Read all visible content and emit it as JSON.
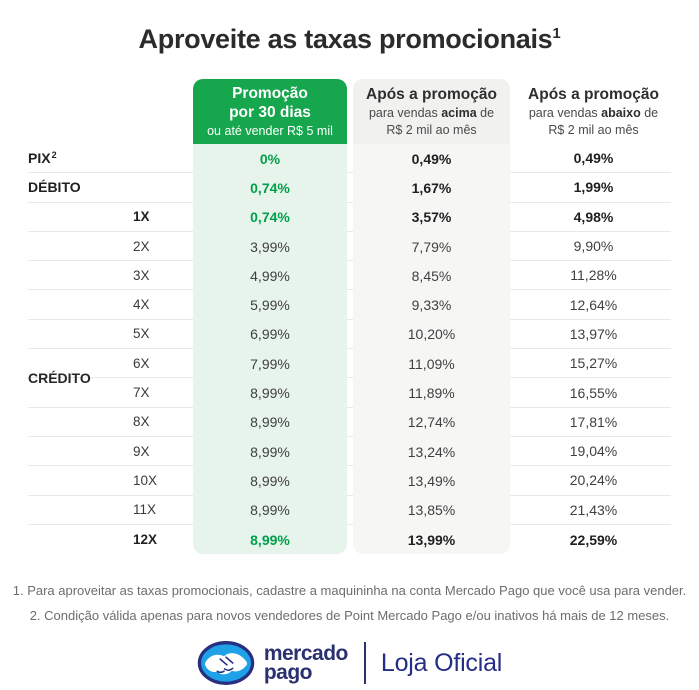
{
  "title": {
    "text": "Aproveite as taxas promocionais",
    "superscript": "1"
  },
  "columns": {
    "promo": {
      "line1": "Promoção",
      "line2": "por 30 dias",
      "line3": "ou até vender R$ 5 mil"
    },
    "above": {
      "line1": "Após a promoção",
      "line2_pre": "para vendas ",
      "line2_emph": "acima",
      "line2_post": " de",
      "line3": "R$ 2 mil ao mês"
    },
    "below": {
      "line1": "Após a promoção",
      "line2_pre": "para vendas ",
      "line2_emph": "abaixo",
      "line2_post": " de",
      "line3": "R$ 2 mil ao mês"
    }
  },
  "groups": {
    "credito": "CRÉDITO"
  },
  "rows": [
    {
      "key": "pix",
      "group": "PIX",
      "group_sup": "2",
      "installment": "",
      "promo": "0%",
      "above": "0,49%",
      "below": "0,49%",
      "bold": true,
      "promo_green": true
    },
    {
      "key": "debito",
      "group": "DÉBITO",
      "installment": "",
      "promo": "0,74%",
      "above": "1,67%",
      "below": "1,99%",
      "bold": true,
      "promo_green": true
    },
    {
      "key": "credito-1x",
      "installment": "1X",
      "promo": "0,74%",
      "above": "3,57%",
      "below": "4,98%",
      "bold": true,
      "promo_green": true
    },
    {
      "key": "credito-2x",
      "installment": "2X",
      "promo": "3,99%",
      "above": "7,79%",
      "below": "9,90%",
      "bold": false,
      "promo_green": false
    },
    {
      "key": "credito-3x",
      "installment": "3X",
      "promo": "4,99%",
      "above": "8,45%",
      "below": "11,28%",
      "bold": false,
      "promo_green": false
    },
    {
      "key": "credito-4x",
      "installment": "4X",
      "promo": "5,99%",
      "above": "9,33%",
      "below": "12,64%",
      "bold": false,
      "promo_green": false
    },
    {
      "key": "credito-5x",
      "installment": "5X",
      "promo": "6,99%",
      "above": "10,20%",
      "below": "13,97%",
      "bold": false,
      "promo_green": false
    },
    {
      "key": "credito-6x",
      "installment": "6X",
      "promo": "7,99%",
      "above": "11,09%",
      "below": "15,27%",
      "bold": false,
      "promo_green": false
    },
    {
      "key": "credito-7x",
      "installment": "7X",
      "promo": "8,99%",
      "above": "11,89%",
      "below": "16,55%",
      "bold": false,
      "promo_green": false
    },
    {
      "key": "credito-8x",
      "installment": "8X",
      "promo": "8,99%",
      "above": "12,74%",
      "below": "17,81%",
      "bold": false,
      "promo_green": false
    },
    {
      "key": "credito-9x",
      "installment": "9X",
      "promo": "8,99%",
      "above": "13,24%",
      "below": "19,04%",
      "bold": false,
      "promo_green": false
    },
    {
      "key": "credito-10x",
      "installment": "10X",
      "promo": "8,99%",
      "above": "13,49%",
      "below": "20,24%",
      "bold": false,
      "promo_green": false
    },
    {
      "key": "credito-11x",
      "installment": "11X",
      "promo": "8,99%",
      "above": "13,85%",
      "below": "21,43%",
      "bold": false,
      "promo_green": false
    },
    {
      "key": "credito-12x",
      "installment": "12X",
      "promo": "8,99%",
      "above": "13,99%",
      "below": "22,59%",
      "bold": true,
      "promo_green": true
    }
  ],
  "footnotes": [
    "1. Para aproveitar as taxas promocionais, cadastre a maquininha na conta Mercado Pago que você usa para vender.",
    "2. Condição válida apenas para novos vendedores de Point Mercado Pago e/ou inativos há mais de 12 meses."
  ],
  "brand": {
    "name_line1": "mercado",
    "name_line2": "pago",
    "badge": "Loja Oficial"
  },
  "colors": {
    "promo_green": "#16a64d",
    "promo_tint": "#e7f4ec",
    "gray_header": "#f1f1f0",
    "gray_tint": "#f6f6f5",
    "green_text": "#00a04a",
    "navy": "#252e85",
    "logo_blue": "#1ea1e6"
  },
  "chart_data": {
    "type": "table",
    "title": "Aproveite as taxas promocionais",
    "columns": [
      "Promoção por 30 dias ou até vender R$ 5 mil",
      "Após a promoção para vendas acima de R$ 2 mil ao mês",
      "Após a promoção para vendas abaixo de R$ 2 mil ao mês"
    ],
    "rows": [
      {
        "label": "PIX",
        "values": [
          "0%",
          "0,49%",
          "0,49%"
        ]
      },
      {
        "label": "DÉBITO",
        "values": [
          "0,74%",
          "1,67%",
          "1,99%"
        ]
      },
      {
        "label": "CRÉDITO 1X",
        "values": [
          "0,74%",
          "3,57%",
          "4,98%"
        ]
      },
      {
        "label": "CRÉDITO 2X",
        "values": [
          "3,99%",
          "7,79%",
          "9,90%"
        ]
      },
      {
        "label": "CRÉDITO 3X",
        "values": [
          "4,99%",
          "8,45%",
          "11,28%"
        ]
      },
      {
        "label": "CRÉDITO 4X",
        "values": [
          "5,99%",
          "9,33%",
          "12,64%"
        ]
      },
      {
        "label": "CRÉDITO 5X",
        "values": [
          "6,99%",
          "10,20%",
          "13,97%"
        ]
      },
      {
        "label": "CRÉDITO 6X",
        "values": [
          "7,99%",
          "11,09%",
          "15,27%"
        ]
      },
      {
        "label": "CRÉDITO 7X",
        "values": [
          "8,99%",
          "11,89%",
          "16,55%"
        ]
      },
      {
        "label": "CRÉDITO 8X",
        "values": [
          "8,99%",
          "12,74%",
          "17,81%"
        ]
      },
      {
        "label": "CRÉDITO 9X",
        "values": [
          "8,99%",
          "13,24%",
          "19,04%"
        ]
      },
      {
        "label": "CRÉDITO 10X",
        "values": [
          "8,99%",
          "13,49%",
          "20,24%"
        ]
      },
      {
        "label": "CRÉDITO 11X",
        "values": [
          "8,99%",
          "13,85%",
          "21,43%"
        ]
      },
      {
        "label": "CRÉDITO 12X",
        "values": [
          "8,99%",
          "13,99%",
          "22,59%"
        ]
      }
    ]
  }
}
